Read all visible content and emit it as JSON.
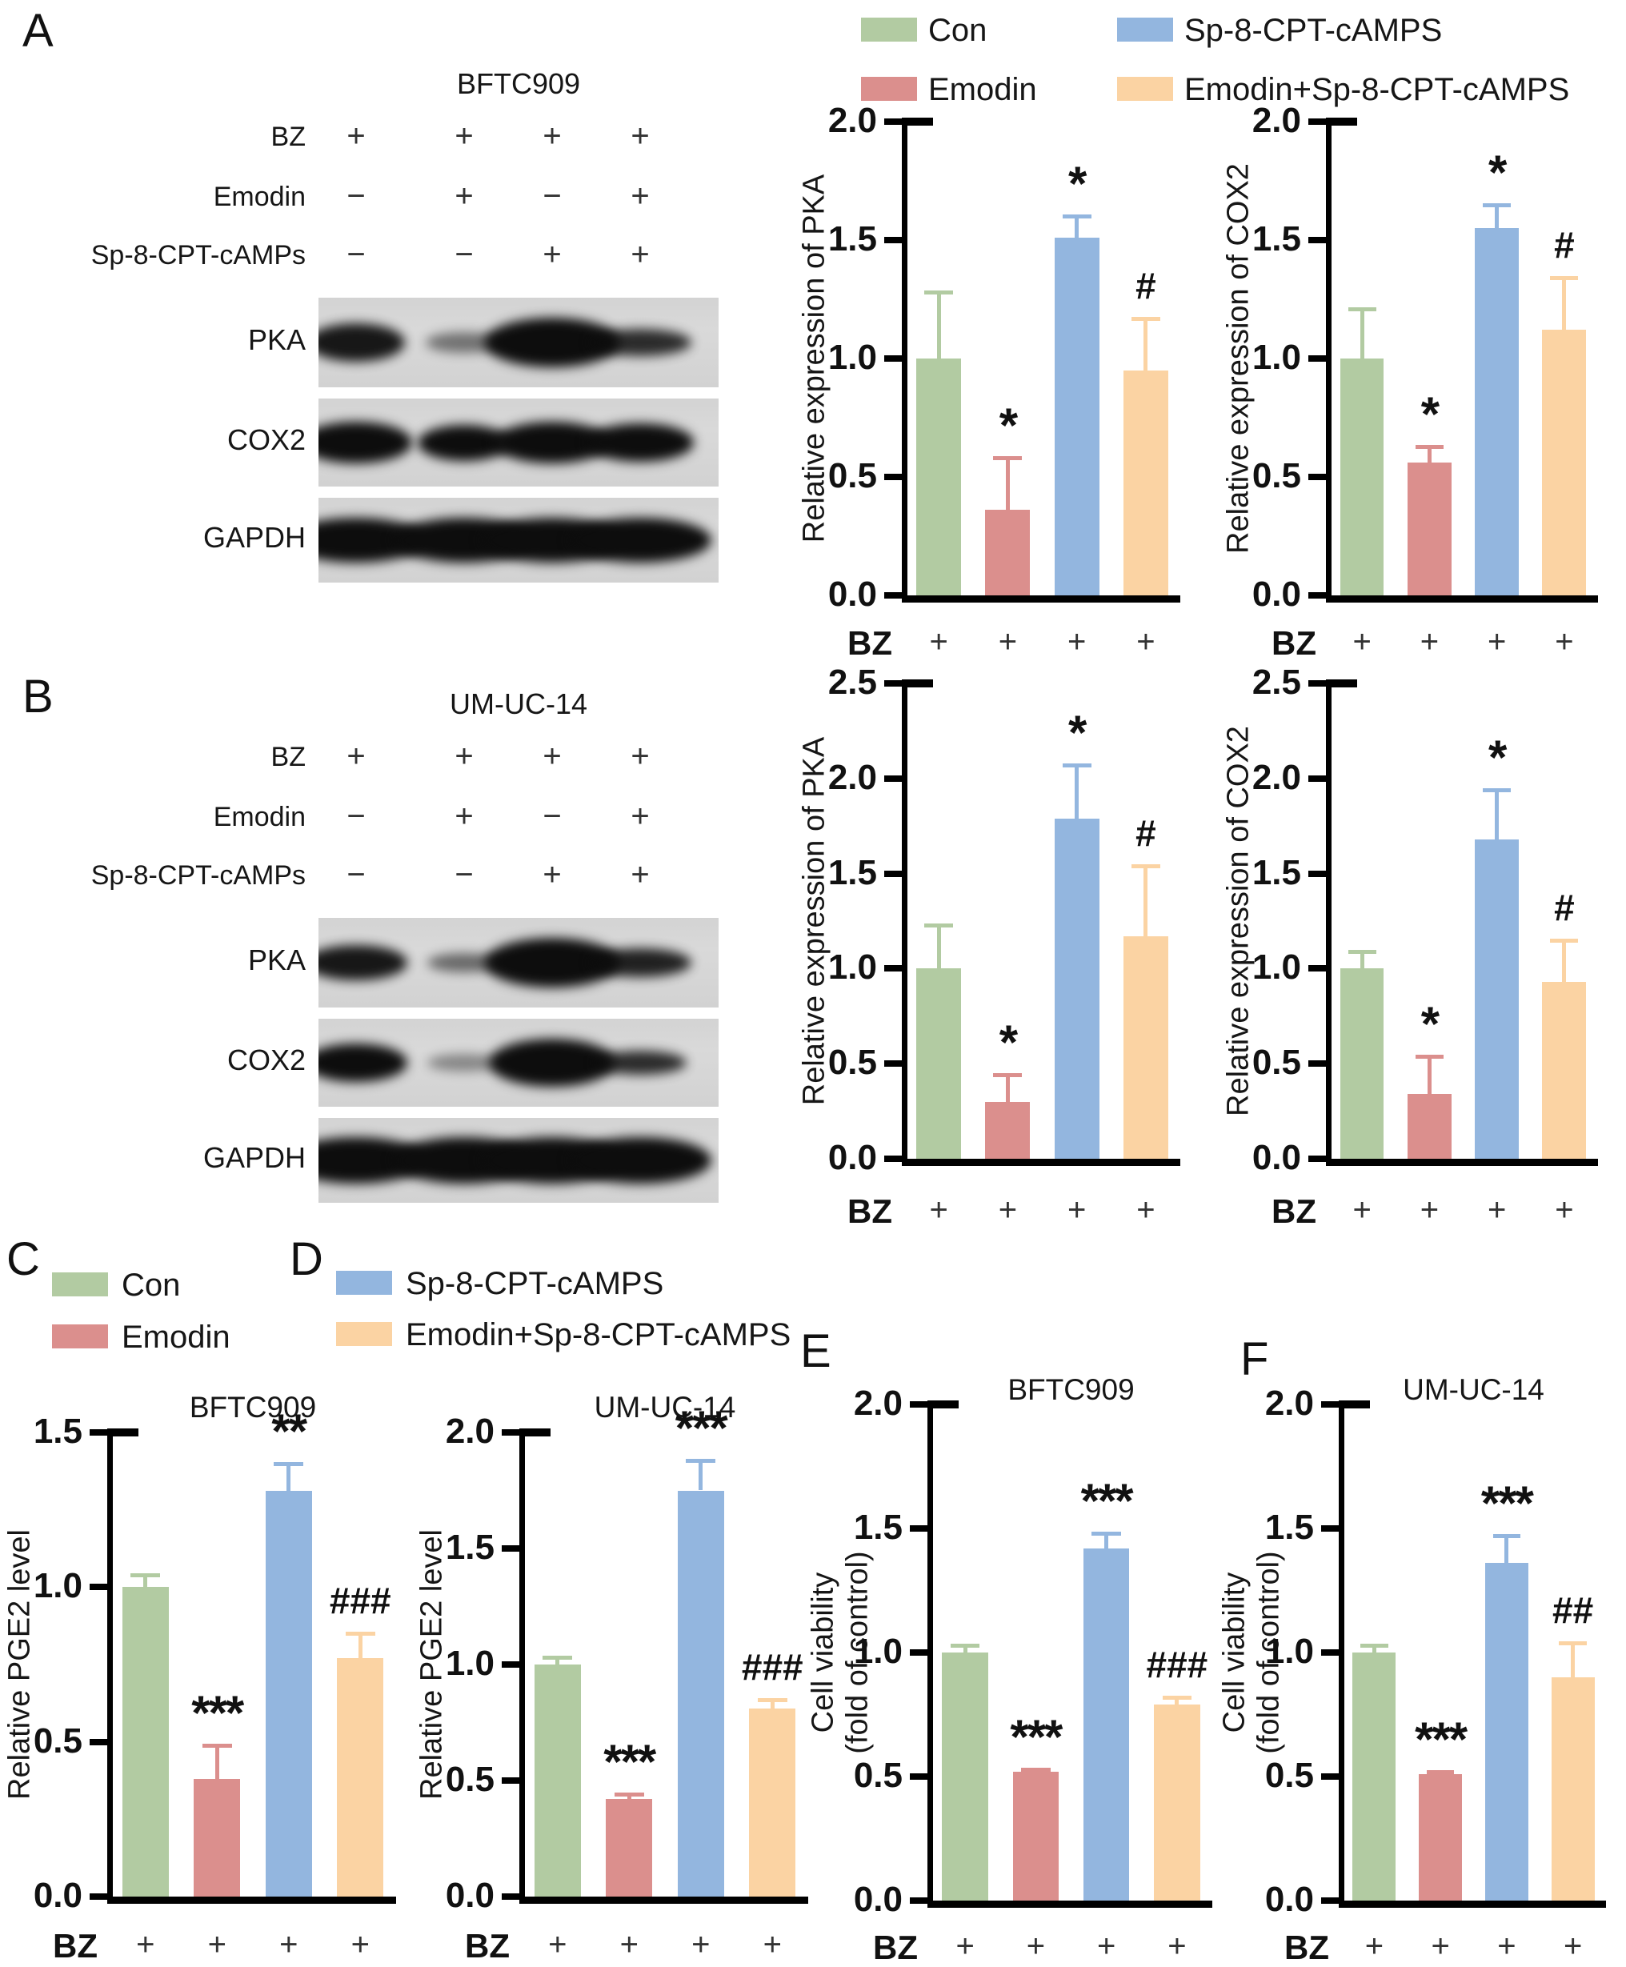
{
  "panel_labels": {
    "a": "A",
    "b": "B",
    "c": "C",
    "d": "D",
    "e": "E",
    "f": "F"
  },
  "colors": {
    "con": "#b2cba2",
    "emodin": "#db8f8d",
    "sp8": "#93b6df",
    "emodin_sp8": "#fbd3a3",
    "axis": "#000000",
    "blot_bg": "#d9d9d9",
    "band": "#0d0d0d"
  },
  "legend_top": [
    {
      "label": "Con",
      "color": "con"
    },
    {
      "label": "Emodin",
      "color": "emodin"
    },
    {
      "label": "Sp-8-CPT-cAMPS",
      "color": "sp8"
    },
    {
      "label": "Emodin+Sp-8-CPT-cAMPS",
      "color": "emodin_sp8"
    }
  ],
  "legend_c": [
    {
      "label": "Con",
      "color": "con"
    },
    {
      "label": "Emodin",
      "color": "emodin"
    }
  ],
  "legend_d": [
    {
      "label": "Sp-8-CPT-cAMPS",
      "color": "sp8"
    },
    {
      "label": "Emodin+Sp-8-CPT-cAMPS",
      "color": "emodin_sp8"
    }
  ],
  "blots": [
    {
      "panel": "A",
      "title": "BFTC909",
      "conditions": [
        {
          "label": "BZ",
          "signs": [
            "+",
            "+",
            "+",
            "+"
          ]
        },
        {
          "label": "Emodin",
          "signs": [
            "−",
            "+",
            "−",
            "+"
          ]
        },
        {
          "label": "Sp-8-CPT-cAMPs",
          "signs": [
            "−",
            "−",
            "+",
            "+"
          ]
        }
      ],
      "bands": [
        {
          "label": "PKA",
          "lanes": [
            {
              "i": 0.95,
              "w": 1.0,
              "h": 1.0
            },
            {
              "i": 0.5,
              "w": 0.78,
              "h": 0.55
            },
            {
              "i": 1,
              "w": 1.4,
              "h": 1.3
            },
            {
              "i": 0.85,
              "w": 1.05,
              "h": 0.7
            }
          ]
        },
        {
          "label": "COX2",
          "lanes": [
            {
              "i": 1,
              "w": 1.15,
              "h": 1.05
            },
            {
              "i": 1,
              "w": 0.95,
              "h": 0.9
            },
            {
              "i": 1,
              "w": 1.2,
              "h": 1.05
            },
            {
              "i": 1,
              "w": 1.1,
              "h": 0.95
            }
          ]
        },
        {
          "label": "GAPDH",
          "lanes": [
            {
              "i": 1,
              "w": 1.35,
              "h": 1.0
            },
            {
              "i": 1,
              "w": 1.35,
              "h": 1.0
            },
            {
              "i": 1,
              "w": 1.35,
              "h": 1.0
            },
            {
              "i": 1,
              "w": 1.35,
              "h": 1.0
            }
          ]
        }
      ]
    },
    {
      "panel": "B",
      "title": "UM-UC-14",
      "conditions": [
        {
          "label": "BZ",
          "signs": [
            "+",
            "+",
            "+",
            "+"
          ]
        },
        {
          "label": "Emodin",
          "signs": [
            "−",
            "+",
            "−",
            "+"
          ]
        },
        {
          "label": "Sp-8-CPT-cAMPs",
          "signs": [
            "−",
            "−",
            "+",
            "+"
          ]
        }
      ],
      "bands": [
        {
          "label": "PKA",
          "lanes": [
            {
              "i": 0.95,
              "w": 1.05,
              "h": 0.9
            },
            {
              "i": 0.55,
              "w": 0.75,
              "h": 0.5
            },
            {
              "i": 1,
              "w": 1.4,
              "h": 1.3
            },
            {
              "i": 0.9,
              "w": 1.05,
              "h": 0.75
            }
          ]
        },
        {
          "label": "COX2",
          "lanes": [
            {
              "i": 1,
              "w": 1.05,
              "h": 0.95
            },
            {
              "i": 0.4,
              "w": 0.75,
              "h": 0.45
            },
            {
              "i": 1,
              "w": 1.3,
              "h": 1.2
            },
            {
              "i": 0.85,
              "w": 0.95,
              "h": 0.6
            }
          ]
        },
        {
          "label": "GAPDH",
          "lanes": [
            {
              "i": 1,
              "w": 1.35,
              "h": 1.05
            },
            {
              "i": 1,
              "w": 1.35,
              "h": 1.05
            },
            {
              "i": 1,
              "w": 1.35,
              "h": 1.05
            },
            {
              "i": 1,
              "w": 1.35,
              "h": 1.05
            }
          ]
        }
      ]
    }
  ],
  "chart_data": [
    {
      "id": "A-PKA",
      "panel": "A",
      "type": "bar",
      "title": "",
      "ylabel": "Relative expression of PKA",
      "ylabel_line2": "",
      "ymax": 2.0,
      "yticks": [
        0,
        0.5,
        1.0,
        1.5,
        2.0
      ],
      "categories": [
        "Con",
        "Emodin",
        "Sp-8-CPT-cAMPS",
        "Emodin+Sp-8-CPT-cAMPS"
      ],
      "bar_colors": [
        "con",
        "emodin",
        "sp8",
        "emodin_sp8"
      ],
      "values": [
        1.0,
        0.36,
        1.51,
        0.95
      ],
      "error_top": [
        1.28,
        0.58,
        1.6,
        1.17
      ],
      "sig": [
        "",
        "*",
        "*",
        "#"
      ],
      "x_label": "BZ",
      "x_signs": [
        "+",
        "+",
        "+",
        "+"
      ]
    },
    {
      "id": "A-COX2",
      "panel": "A",
      "type": "bar",
      "title": "",
      "ylabel": "Relative expression of COX2",
      "ylabel_line2": "",
      "ymax": 2.0,
      "yticks": [
        0,
        0.5,
        1.0,
        1.5,
        2.0
      ],
      "categories": [
        "Con",
        "Emodin",
        "Sp-8-CPT-cAMPS",
        "Emodin+Sp-8-CPT-cAMPS"
      ],
      "bar_colors": [
        "con",
        "emodin",
        "sp8",
        "emodin_sp8"
      ],
      "values": [
        1.0,
        0.56,
        1.55,
        1.12
      ],
      "error_top": [
        1.21,
        0.63,
        1.65,
        1.34
      ],
      "sig": [
        "",
        "*",
        "*",
        "#"
      ],
      "x_label": "BZ",
      "x_signs": [
        "+",
        "+",
        "+",
        "+"
      ]
    },
    {
      "id": "B-PKA",
      "panel": "B",
      "type": "bar",
      "title": "",
      "ylabel": "Relative expression of PKA",
      "ylabel_line2": "",
      "ymax": 2.5,
      "yticks": [
        0,
        0.5,
        1.0,
        1.5,
        2.0,
        2.5
      ],
      "categories": [
        "Con",
        "Emodin",
        "Sp-8-CPT-cAMPS",
        "Emodin+Sp-8-CPT-cAMPS"
      ],
      "bar_colors": [
        "con",
        "emodin",
        "sp8",
        "emodin_sp8"
      ],
      "values": [
        1.0,
        0.3,
        1.79,
        1.17
      ],
      "error_top": [
        1.23,
        0.44,
        2.07,
        1.54
      ],
      "sig": [
        "",
        "*",
        "*",
        "#"
      ],
      "x_label": "BZ",
      "x_signs": [
        "+",
        "+",
        "+",
        "+"
      ]
    },
    {
      "id": "B-COX2",
      "panel": "B",
      "type": "bar",
      "title": "",
      "ylabel": "Relative expression of COX2",
      "ylabel_line2": "",
      "ymax": 2.5,
      "yticks": [
        0,
        0.5,
        1.0,
        1.5,
        2.0,
        2.5
      ],
      "categories": [
        "Con",
        "Emodin",
        "Sp-8-CPT-cAMPS",
        "Emodin+Sp-8-CPT-cAMPS"
      ],
      "bar_colors": [
        "con",
        "emodin",
        "sp8",
        "emodin_sp8"
      ],
      "values": [
        1.0,
        0.34,
        1.68,
        0.93
      ],
      "error_top": [
        1.09,
        0.54,
        1.94,
        1.15
      ],
      "sig": [
        "",
        "*",
        "*",
        "#"
      ],
      "x_label": "BZ",
      "x_signs": [
        "+",
        "+",
        "+",
        "+"
      ]
    },
    {
      "id": "C",
      "panel": "C",
      "type": "bar",
      "title": "BFTC909",
      "ylabel": "Relative PGE2 level",
      "ylabel_line2": "",
      "ymax": 1.5,
      "yticks": [
        0,
        0.5,
        1.0,
        1.5
      ],
      "categories": [
        "Con",
        "Emodin",
        "Sp-8-CPT-cAMPS",
        "Emodin+Sp-8-CPT-cAMPS"
      ],
      "bar_colors": [
        "con",
        "emodin",
        "sp8",
        "emodin_sp8"
      ],
      "values": [
        1.0,
        0.38,
        1.31,
        0.77
      ],
      "error_top": [
        1.04,
        0.49,
        1.4,
        0.85
      ],
      "sig": [
        "",
        "***",
        "**",
        "###"
      ],
      "x_label": "BZ",
      "x_signs": [
        "+",
        "+",
        "+",
        "+"
      ]
    },
    {
      "id": "D",
      "panel": "D",
      "type": "bar",
      "title": "UM-UC-14",
      "ylabel": "Relative PGE2 level",
      "ylabel_line2": "",
      "ymax": 2.0,
      "yticks": [
        0,
        0.5,
        1.0,
        1.5,
        2.0
      ],
      "categories": [
        "Con",
        "Emodin",
        "Sp-8-CPT-cAMPS",
        "Emodin+Sp-8-CPT-cAMPS"
      ],
      "bar_colors": [
        "con",
        "emodin",
        "sp8",
        "emodin_sp8"
      ],
      "values": [
        1.0,
        0.42,
        1.75,
        0.81
      ],
      "error_top": [
        1.03,
        0.44,
        1.88,
        0.85
      ],
      "sig": [
        "",
        "***",
        "***",
        "###"
      ],
      "x_label": "BZ",
      "x_signs": [
        "+",
        "+",
        "+",
        "+"
      ]
    },
    {
      "id": "E",
      "panel": "E",
      "type": "bar",
      "title": "BFTC909",
      "ylabel": "Cell viability",
      "ylabel_line2": "(fold of control)",
      "ymax": 2.0,
      "yticks": [
        0,
        0.5,
        1.0,
        1.5,
        2.0
      ],
      "categories": [
        "Con",
        "Emodin",
        "Sp-8-CPT-cAMPS",
        "Emodin+Sp-8-CPT-cAMPS"
      ],
      "bar_colors": [
        "con",
        "emodin",
        "sp8",
        "emodin_sp8"
      ],
      "values": [
        1.0,
        0.52,
        1.42,
        0.79
      ],
      "error_top": [
        1.03,
        0.53,
        1.48,
        0.82
      ],
      "sig": [
        "",
        "***",
        "***",
        "###"
      ],
      "x_label": "BZ",
      "x_signs": [
        "+",
        "+",
        "+",
        "+"
      ]
    },
    {
      "id": "F",
      "panel": "F",
      "type": "bar",
      "title": "UM-UC-14",
      "ylabel": "Cell viability",
      "ylabel_line2": "(fold of control)",
      "ymax": 2.0,
      "yticks": [
        0,
        0.5,
        1.0,
        1.5,
        2.0
      ],
      "categories": [
        "Con",
        "Emodin",
        "Sp-8-CPT-cAMPS",
        "Emodin+Sp-8-CPT-cAMPS"
      ],
      "bar_colors": [
        "con",
        "emodin",
        "sp8",
        "emodin_sp8"
      ],
      "values": [
        1.0,
        0.51,
        1.36,
        0.9
      ],
      "error_top": [
        1.03,
        0.52,
        1.47,
        1.04
      ],
      "sig": [
        "",
        "***",
        "***",
        "##"
      ],
      "x_label": "BZ",
      "x_signs": [
        "+",
        "+",
        "+",
        "+"
      ]
    }
  ]
}
